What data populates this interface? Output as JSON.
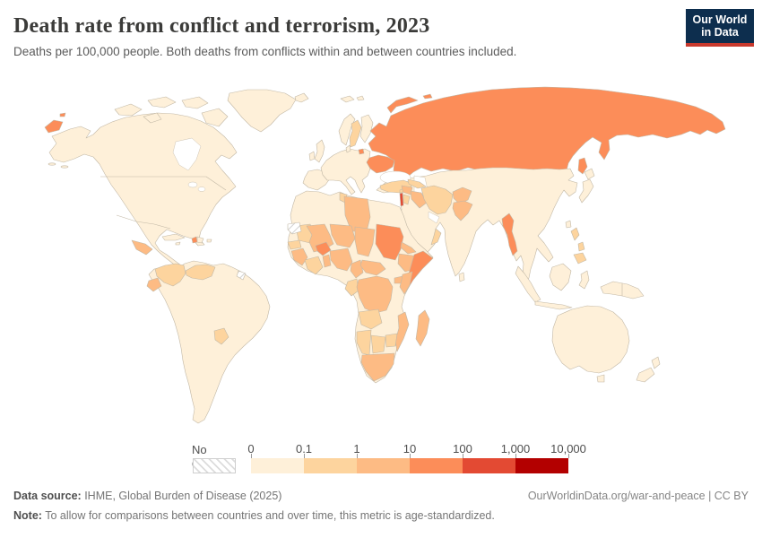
{
  "header": {
    "title": "Death rate from conflict and terrorism, 2023",
    "subtitle": "Deaths per 100,000 people. Both deaths from conflicts within and between countries included."
  },
  "logo": {
    "line1": "Our World",
    "line2": "in Data",
    "bg_color": "#0d2e4e",
    "accent_color": "#c8392d"
  },
  "legend": {
    "no_data_label": "No data",
    "tick_labels": [
      "0",
      "0.1",
      "1",
      "10",
      "100",
      "1,000",
      "10,000"
    ],
    "bin_colors": [
      "#fef0d9",
      "#fdd49e",
      "#fdbb84",
      "#fc8d59",
      "#e34a33",
      "#b30000"
    ]
  },
  "footer": {
    "source_label": "Data source:",
    "source_text": " IHME, Global Burden of Disease (2025)",
    "note_label": "Note:",
    "note_text": " To allow for comparisons between countries and over time, this metric is age-standardized.",
    "link_text": "OurWorldinData.org/war-and-peace | CC BY"
  },
  "chart_data": {
    "type": "heatmap",
    "subtype": "choropleth-world-map",
    "title": "Death rate from conflict and terrorism, 2023",
    "unit": "Deaths per 100,000 people (age-standardized)",
    "scale": "log",
    "legend_bins": [
      {
        "range": "0–0.1",
        "color": "#fef0d9"
      },
      {
        "range": "0.1–1",
        "color": "#fdd49e"
      },
      {
        "range": "1–10",
        "color": "#fdbb84"
      },
      {
        "range": "10–100",
        "color": "#fc8d59"
      },
      {
        "range": "100–1,000",
        "color": "#e34a33"
      },
      {
        "range": "1,000–10,000",
        "color": "#b30000"
      }
    ],
    "no_data": {
      "label": "No data",
      "style": "gray-hatch"
    },
    "country_bins": {
      "north-america": 0,
      "greenland": 0,
      "arctic-island-1": 0,
      "arctic-island-2": 0,
      "arctic-island-3": 0,
      "arctic-island-4": 0,
      "arctic-island-5": 0,
      "cuba": 0,
      "haiti": 3,
      "dominican-republic": 0,
      "jamaica": 0,
      "puerto-rico": 0,
      "central-america": 2,
      "south-america": 0,
      "colombia": 1,
      "ecuador": 2,
      "venezuela": 1,
      "paraguay": 1,
      "french-guiana": -1,
      "europe": 0,
      "iceland": 0,
      "uk": 0,
      "ireland": 0,
      "norway": 0,
      "sweden": 1,
      "finland": 0,
      "denmark": 0,
      "svalbard-1": 0,
      "svalbard-2": 0,
      "russia": 3,
      "russia-chukotka-fragment": 3,
      "wrangel-island": 3,
      "novaya-zemlya": 3,
      "franz-josef": 3,
      "sakhalin": 3,
      "kaliningrad": 3,
      "ukraine": 3,
      "caucasus": 1,
      "turkey": 1,
      "syria": 2,
      "lebanon": 1,
      "israel-palestine": 4,
      "jordan": 1,
      "iraq": 2,
      "iran": 1,
      "afghanistan": 2,
      "pakistan": 2,
      "yemen": 2,
      "oman": 1,
      "asia": 0,
      "japan-hokkaido": 0,
      "japan-honshu": 0,
      "taiwan": 0,
      "sri-lanka": 0,
      "myanmar": 3,
      "philippines-luzon": 1,
      "philippines-visayas": 1,
      "philippines-mindanao": 1,
      "sumatra": 0,
      "java": 0,
      "borneo": 0,
      "sulawesi": 0,
      "new-guinea": 0,
      "australia": 0,
      "tasmania": 0,
      "new-zealand-north": 0,
      "new-zealand-south": 0,
      "africa": 0,
      "western-sahara": -1,
      "mauritania": 1,
      "senegal": 1,
      "guinea": 2,
      "ivory-coast-ghana": 1,
      "togo-benin": 2,
      "mali": 2,
      "burkina-faso": 3,
      "niger": 2,
      "nigeria": 2,
      "chad": 2,
      "sudan": 3,
      "eritrea": 2,
      "ethiopia": 2,
      "somalia": 3,
      "uganda": 2,
      "kenya": 2,
      "central-african-republic": 2,
      "cameroon": 2,
      "drc": 2,
      "congo-gabon": 1,
      "angola": 1,
      "mozambique": 2,
      "zimbabwe": 1,
      "namibia": 1,
      "botswana": 1,
      "south-africa": 2,
      "madagascar": 2,
      "libya": 2,
      "tunisia": 1
    }
  }
}
